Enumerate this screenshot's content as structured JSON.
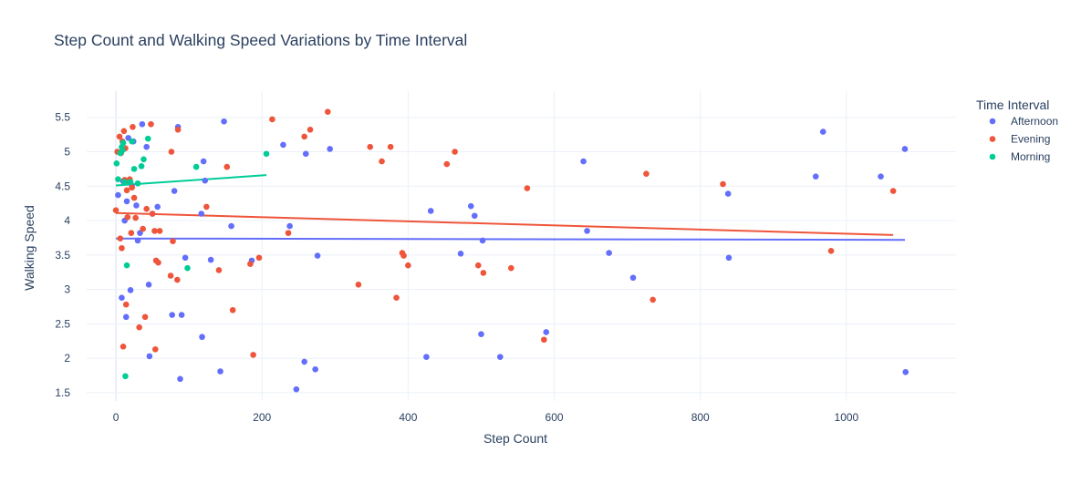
{
  "chart_data": {
    "type": "scatter",
    "title": "Step Count and Walking Speed Variations by Time Interval",
    "xlabel": "Step Count",
    "ylabel": "Walking Speed",
    "xlim": [
      -40,
      1150
    ],
    "ylim": [
      1.38,
      5.88
    ],
    "x_ticks": [
      0,
      200,
      400,
      600,
      800,
      1000
    ],
    "y_ticks": [
      1.5,
      2,
      2.5,
      3,
      3.5,
      4,
      4.5,
      5,
      5.5
    ],
    "grid": true,
    "legend_title": "Time Interval",
    "legend_position": "top-right",
    "series": [
      {
        "name": "Afternoon",
        "color": "#636efa",
        "points": [
          [
            3,
            4.37
          ],
          [
            8,
            2.88
          ],
          [
            10,
            4.57
          ],
          [
            12,
            4.0
          ],
          [
            14,
            2.6
          ],
          [
            15,
            4.28
          ],
          [
            17,
            5.2
          ],
          [
            20,
            2.99
          ],
          [
            22,
            4.5
          ],
          [
            24,
            5.15
          ],
          [
            28,
            4.22
          ],
          [
            30,
            3.71
          ],
          [
            33,
            3.82
          ],
          [
            36,
            5.4
          ],
          [
            42,
            5.07
          ],
          [
            45,
            3.07
          ],
          [
            46,
            2.03
          ],
          [
            50,
            4.1
          ],
          [
            57,
            4.2
          ],
          [
            77,
            2.63
          ],
          [
            80,
            4.43
          ],
          [
            85,
            5.36
          ],
          [
            90,
            2.63
          ],
          [
            88,
            1.7
          ],
          [
            95,
            3.46
          ],
          [
            117,
            4.1
          ],
          [
            118,
            2.31
          ],
          [
            120,
            4.86
          ],
          [
            122,
            4.58
          ],
          [
            130,
            3.43
          ],
          [
            143,
            1.81
          ],
          [
            148,
            5.44
          ],
          [
            158,
            3.92
          ],
          [
            186,
            3.42
          ],
          [
            229,
            5.1
          ],
          [
            238,
            3.92
          ],
          [
            260,
            4.97
          ],
          [
            258,
            1.95
          ],
          [
            273,
            1.84
          ],
          [
            276,
            3.49
          ],
          [
            247,
            1.55
          ],
          [
            293,
            5.04
          ],
          [
            425,
            2.02
          ],
          [
            431,
            4.14
          ],
          [
            472,
            3.52
          ],
          [
            486,
            4.21
          ],
          [
            491,
            4.07
          ],
          [
            500,
            2.35
          ],
          [
            502,
            3.71
          ],
          [
            526,
            2.02
          ],
          [
            589,
            2.38
          ],
          [
            640,
            4.86
          ],
          [
            645,
            3.85
          ],
          [
            675,
            3.53
          ],
          [
            708,
            3.17
          ],
          [
            838,
            4.39
          ],
          [
            839,
            3.46
          ],
          [
            958,
            4.64
          ],
          [
            968,
            5.29
          ],
          [
            1047,
            4.64
          ],
          [
            1080,
            5.04
          ],
          [
            1081,
            1.8
          ]
        ],
        "trend": [
          [
            0,
            3.74
          ],
          [
            1080,
            3.72
          ]
        ]
      },
      {
        "name": "Evening",
        "color": "#ef553b",
        "points": [
          [
            0,
            4.15
          ],
          [
            2,
            5.0
          ],
          [
            5,
            5.22
          ],
          [
            6,
            3.74
          ],
          [
            7,
            4.98
          ],
          [
            8,
            3.6
          ],
          [
            9,
            5.15
          ],
          [
            10,
            2.17
          ],
          [
            11,
            5.3
          ],
          [
            12,
            4.59
          ],
          [
            13,
            5.05
          ],
          [
            14,
            2.78
          ],
          [
            15,
            4.44
          ],
          [
            16,
            4.05
          ],
          [
            18,
            4.57
          ],
          [
            19,
            4.6
          ],
          [
            21,
            3.82
          ],
          [
            22,
            4.48
          ],
          [
            23,
            5.36
          ],
          [
            25,
            4.33
          ],
          [
            27,
            4.04
          ],
          [
            32,
            2.45
          ],
          [
            37,
            3.88
          ],
          [
            40,
            2.6
          ],
          [
            42,
            4.17
          ],
          [
            48,
            5.4
          ],
          [
            50,
            4.1
          ],
          [
            53,
            3.85
          ],
          [
            54,
            2.13
          ],
          [
            55,
            3.42
          ],
          [
            58,
            3.39
          ],
          [
            60,
            3.85
          ],
          [
            75,
            3.2
          ],
          [
            76,
            5.0
          ],
          [
            78,
            3.7
          ],
          [
            84,
            3.14
          ],
          [
            85,
            5.32
          ],
          [
            124,
            4.2
          ],
          [
            141,
            3.28
          ],
          [
            152,
            4.78
          ],
          [
            160,
            2.7
          ],
          [
            184,
            3.37
          ],
          [
            188,
            2.05
          ],
          [
            196,
            3.46
          ],
          [
            214,
            5.47
          ],
          [
            236,
            3.82
          ],
          [
            258,
            5.22
          ],
          [
            266,
            5.32
          ],
          [
            290,
            5.58
          ],
          [
            332,
            3.07
          ],
          [
            348,
            5.07
          ],
          [
            364,
            4.86
          ],
          [
            376,
            5.07
          ],
          [
            384,
            2.88
          ],
          [
            392,
            3.53
          ],
          [
            394,
            3.49
          ],
          [
            400,
            3.35
          ],
          [
            453,
            4.82
          ],
          [
            464,
            5.0
          ],
          [
            496,
            3.35
          ],
          [
            503,
            3.24
          ],
          [
            541,
            3.31
          ],
          [
            563,
            4.47
          ],
          [
            586,
            2.27
          ],
          [
            726,
            4.68
          ],
          [
            735,
            2.85
          ],
          [
            831,
            4.53
          ],
          [
            979,
            3.56
          ],
          [
            1064,
            4.43
          ]
        ],
        "trend": [
          [
            0,
            4.11
          ],
          [
            1064,
            3.79
          ]
        ]
      },
      {
        "name": "Morning",
        "color": "#00cc96",
        "points": [
          [
            1,
            4.83
          ],
          [
            3,
            4.6
          ],
          [
            6,
            4.98
          ],
          [
            8,
            5.07
          ],
          [
            9,
            5.02
          ],
          [
            10,
            5.13
          ],
          [
            12,
            4.56
          ],
          [
            13,
            1.74
          ],
          [
            15,
            3.35
          ],
          [
            20,
            4.56
          ],
          [
            22,
            5.15
          ],
          [
            25,
            4.75
          ],
          [
            30,
            4.54
          ],
          [
            35,
            4.79
          ],
          [
            38,
            4.89
          ],
          [
            44,
            5.19
          ],
          [
            98,
            3.31
          ],
          [
            110,
            4.78
          ],
          [
            206,
            4.97
          ]
        ],
        "trend": [
          [
            0,
            4.51
          ],
          [
            206,
            4.66
          ]
        ]
      }
    ]
  }
}
